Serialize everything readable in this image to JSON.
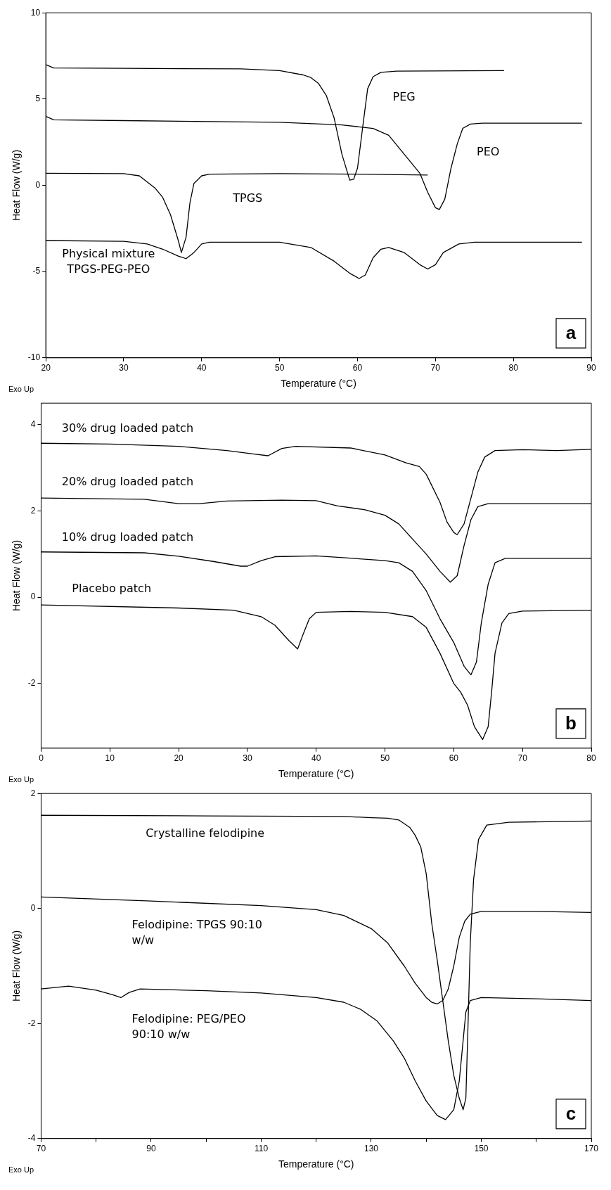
{
  "chart_data": [
    {
      "type": "line",
      "xlabel": "Temperature (°C)",
      "ylabel": "Heat Flow (W/g)",
      "xlim": [
        20,
        90
      ],
      "xticks": [
        20,
        30,
        40,
        50,
        60,
        70,
        80,
        90
      ],
      "ylim": [
        -10,
        10
      ],
      "yticks": [
        -10,
        -5,
        0,
        5,
        10
      ],
      "annotations": [
        "Exo Up",
        "a"
      ],
      "series": [
        {
          "name": "PEG",
          "color": "#000000",
          "x": [
            20,
            21,
            30,
            45,
            50,
            53,
            54,
            55,
            56,
            57,
            58,
            59,
            59.5,
            60,
            60.7,
            61.3,
            62,
            63,
            65,
            78.8
          ],
          "values": [
            7.0,
            6.8,
            6.78,
            6.75,
            6.65,
            6.4,
            6.25,
            5.9,
            5.2,
            3.9,
            1.8,
            0.3,
            0.35,
            1.0,
            3.5,
            5.6,
            6.3,
            6.55,
            6.62,
            6.65
          ]
        },
        {
          "name": "PEO",
          "color": "#000000",
          "x": [
            20,
            21,
            30,
            50,
            58,
            62,
            64,
            66,
            68,
            69,
            70,
            70.5,
            71.2,
            72,
            72.8,
            73.5,
            74.5,
            76,
            88.8
          ],
          "values": [
            4.0,
            3.8,
            3.75,
            3.65,
            3.5,
            3.3,
            2.9,
            1.8,
            0.7,
            -0.4,
            -1.3,
            -1.4,
            -0.8,
            1.0,
            2.4,
            3.3,
            3.55,
            3.6,
            3.6
          ]
        },
        {
          "name": "TPGS",
          "color": "#000000",
          "x": [
            20,
            30,
            32,
            34,
            35,
            36,
            37,
            37.4,
            38,
            38.5,
            39,
            40,
            41,
            50,
            60,
            69
          ],
          "values": [
            0.7,
            0.68,
            0.55,
            -0.15,
            -0.7,
            -1.7,
            -3.2,
            -3.9,
            -3.0,
            -1.0,
            0.1,
            0.55,
            0.65,
            0.68,
            0.65,
            0.6
          ]
        },
        {
          "name": "Physical mixture TPGS-PEG-PEO",
          "color": "#000000",
          "x": [
            20,
            30,
            33,
            35,
            37,
            38,
            39,
            40,
            41,
            50,
            54,
            57,
            59,
            60.2,
            61,
            62,
            63,
            64,
            66,
            68,
            69,
            70,
            71,
            73,
            75,
            88.8
          ],
          "values": [
            -3.2,
            -3.25,
            -3.4,
            -3.7,
            -4.1,
            -4.25,
            -3.9,
            -3.4,
            -3.3,
            -3.3,
            -3.6,
            -4.4,
            -5.1,
            -5.4,
            -5.2,
            -4.2,
            -3.7,
            -3.6,
            -3.9,
            -4.6,
            -4.85,
            -4.6,
            -3.9,
            -3.4,
            -3.3,
            -3.3
          ]
        }
      ]
    },
    {
      "type": "line",
      "xlabel": "Temperature (°C)",
      "ylabel": "Heat Flow (W/g)",
      "xlim": [
        0,
        80
      ],
      "xticks": [
        0,
        10,
        20,
        30,
        40,
        50,
        60,
        70,
        80
      ],
      "ylim": [
        -3.5,
        4.5
      ],
      "yticks": [
        -2,
        0,
        2,
        4
      ],
      "annotations": [
        "Exo Up",
        "b"
      ],
      "series": [
        {
          "name": "30% drug loaded patch",
          "color": "#000000",
          "x": [
            0,
            10,
            20,
            27,
            31,
            33,
            35,
            37,
            45,
            50,
            53,
            55,
            56,
            58,
            59,
            60,
            60.5,
            61.5,
            62.5,
            63.5,
            64.5,
            66,
            70,
            75,
            80
          ],
          "values": [
            3.57,
            3.55,
            3.5,
            3.4,
            3.32,
            3.28,
            3.45,
            3.5,
            3.46,
            3.3,
            3.12,
            3.03,
            2.85,
            2.2,
            1.75,
            1.5,
            1.45,
            1.7,
            2.3,
            2.9,
            3.25,
            3.4,
            3.42,
            3.4,
            3.43
          ]
        },
        {
          "name": "20% drug loaded patch",
          "color": "#000000",
          "x": [
            0,
            15,
            20,
            23,
            27,
            35,
            40,
            43,
            47,
            50,
            52,
            54,
            56,
            58,
            59.5,
            60.5,
            61.5,
            62.5,
            63.5,
            65,
            80
          ],
          "values": [
            2.3,
            2.27,
            2.17,
            2.17,
            2.23,
            2.25,
            2.24,
            2.12,
            2.03,
            1.9,
            1.7,
            1.35,
            1.0,
            0.6,
            0.35,
            0.5,
            1.2,
            1.8,
            2.1,
            2.17,
            2.17
          ]
        },
        {
          "name": "10% drug loaded patch",
          "color": "#000000",
          "x": [
            0,
            15,
            20,
            25,
            29,
            30,
            32,
            34,
            40,
            50,
            52,
            54,
            56,
            58,
            60,
            61.5,
            62.5,
            63.3,
            64,
            65,
            66,
            67.5,
            80
          ],
          "values": [
            1.05,
            1.03,
            0.95,
            0.83,
            0.72,
            0.72,
            0.85,
            0.94,
            0.96,
            0.85,
            0.8,
            0.6,
            0.15,
            -0.5,
            -1.05,
            -1.6,
            -1.8,
            -1.5,
            -0.6,
            0.3,
            0.8,
            0.9,
            0.9
          ]
        },
        {
          "name": "Placebo patch",
          "color": "#000000",
          "x": [
            0,
            20,
            28,
            32,
            34,
            36,
            37.3,
            38,
            39,
            40,
            45,
            50,
            54,
            56,
            58,
            60,
            61,
            62,
            63,
            64.2,
            65,
            65.5,
            66,
            67,
            68,
            70,
            80
          ],
          "values": [
            -0.18,
            -0.25,
            -0.3,
            -0.45,
            -0.65,
            -1.0,
            -1.2,
            -0.9,
            -0.5,
            -0.35,
            -0.33,
            -0.35,
            -0.45,
            -0.7,
            -1.3,
            -2.0,
            -2.2,
            -2.5,
            -3.0,
            -3.3,
            -3.0,
            -2.2,
            -1.3,
            -0.6,
            -0.38,
            -0.32,
            -0.3
          ]
        }
      ]
    },
    {
      "type": "line",
      "xlabel": "Temperature (°C)",
      "ylabel": "Heat Flow (W/g)",
      "xlim": [
        70,
        170
      ],
      "xticks": [
        70,
        {
          "value": 80,
          "label": null
        },
        90,
        {
          "value": 100,
          "label": null
        },
        110,
        {
          "value": 120,
          "label": null
        },
        130,
        {
          "value": 140,
          "label": null
        },
        150,
        {
          "value": 160,
          "label": null
        },
        170
      ],
      "ylim": [
        -4,
        2
      ],
      "yticks": [
        -4,
        -2,
        0,
        2
      ],
      "annotations": [
        "Exo Up",
        "c"
      ],
      "series": [
        {
          "name": "Crystalline felodipine",
          "color": "#000000",
          "x": [
            70,
            100,
            125,
            130,
            133,
            135,
            137,
            138,
            139,
            140,
            141,
            142,
            143,
            144,
            145,
            146,
            146.7,
            147.2,
            147.6,
            148,
            148.6,
            149.5,
            151,
            155,
            170
          ],
          "values": [
            1.62,
            1.61,
            1.6,
            1.58,
            1.57,
            1.54,
            1.41,
            1.27,
            1.07,
            0.6,
            -0.26,
            -0.9,
            -1.6,
            -2.3,
            -2.9,
            -3.3,
            -3.5,
            -3.3,
            -2.0,
            -0.6,
            0.5,
            1.2,
            1.45,
            1.5,
            1.52
          ]
        },
        {
          "name": "Felodipine: TPGS 90:10 w/w",
          "color": "#000000",
          "x": [
            70,
            90,
            110,
            120,
            125,
            130,
            133,
            136,
            138,
            140,
            141,
            142,
            143,
            144,
            145,
            146,
            147,
            148,
            150,
            160,
            170
          ],
          "values": [
            0.2,
            0.13,
            0.05,
            -0.02,
            -0.12,
            -0.35,
            -0.6,
            -1.0,
            -1.3,
            -1.55,
            -1.63,
            -1.66,
            -1.6,
            -1.4,
            -1.0,
            -0.5,
            -0.22,
            -0.1,
            -0.05,
            -0.05,
            -0.07
          ]
        },
        {
          "name": "Felodipine: PEG/PEO 90:10 w/w",
          "color": "#000000",
          "x": [
            70,
            75,
            80,
            83,
            84.5,
            86,
            88,
            100,
            110,
            120,
            125,
            128,
            131,
            134,
            136,
            138,
            140,
            142,
            143.5,
            145,
            146,
            146.5,
            147.2,
            148,
            150,
            160,
            170
          ],
          "values": [
            -1.4,
            -1.35,
            -1.42,
            -1.5,
            -1.55,
            -1.46,
            -1.4,
            -1.43,
            -1.47,
            -1.55,
            -1.63,
            -1.75,
            -1.95,
            -2.3,
            -2.6,
            -3.0,
            -3.35,
            -3.6,
            -3.67,
            -3.5,
            -3.0,
            -2.5,
            -1.8,
            -1.6,
            -1.55,
            -1.57,
            -1.6
          ]
        }
      ]
    }
  ]
}
